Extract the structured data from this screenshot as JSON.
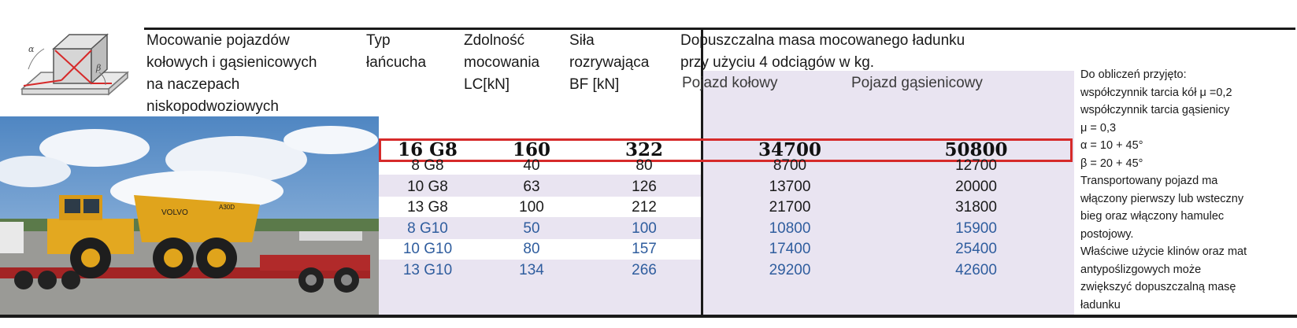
{
  "header": {
    "title_lines": [
      "Mocowanie pojazdów",
      "kołowych i gąsienicowych",
      "na naczepach",
      "niskopodwoziowych"
    ],
    "chain_type_lines": [
      "Typ",
      "łańcucha"
    ],
    "lc_lines": [
      "Zdolność",
      "mocowania",
      "LC[kN]"
    ],
    "bf_lines": [
      "Siła",
      "rozrywająca",
      "BF [kN]"
    ],
    "mass_lines": [
      "Dopuszczalna masa mocowanego ładunku",
      "przy użyciu 4 odciągów w kg."
    ],
    "sub_wheeled": "Pojazd kołowy",
    "sub_tracked": "Pojazd gąsienicowy"
  },
  "diagram": {
    "alpha": "α",
    "beta": "β"
  },
  "highlight": {
    "type": "16 G8",
    "lc": "160",
    "bf": "322",
    "wheeled": "34700",
    "tracked": "50800"
  },
  "rows": [
    {
      "type": "8 G8",
      "lc": "40",
      "bf": "80",
      "wheeled": "8700",
      "tracked": "12700",
      "color": "#1a1a1a"
    },
    {
      "type": "10 G8",
      "lc": "63",
      "bf": "126",
      "wheeled": "13700",
      "tracked": "20000",
      "color": "#1a1a1a"
    },
    {
      "type": "13 G8",
      "lc": "100",
      "bf": "212",
      "wheeled": "21700",
      "tracked": "31800",
      "color": "#1a1a1a"
    },
    {
      "type": "8 G10",
      "lc": "50",
      "bf": "100",
      "wheeled": "10800",
      "tracked": "15900",
      "color": "#2f5d9e"
    },
    {
      "type": "10 G10",
      "lc": "80",
      "bf": "157",
      "wheeled": "17400",
      "tracked": "25400",
      "color": "#2f5d9e"
    },
    {
      "type": "13 G10",
      "lc": "134",
      "bf": "266",
      "wheeled": "29200",
      "tracked": "42600",
      "color": "#2f5d9e"
    }
  ],
  "notes": [
    "Do obliczeń przyjęto:",
    "współczynnik tarcia kół μ =0,2",
    "współczynnik tarcia gąsienicy",
    " μ = 0,3",
    " α = 10 + 45°",
    "β = 20 + 45°",
    "Transportowany pojazd ma",
    "włączony pierwszy lub wsteczny",
    "bieg oraz włączony hamulec",
    "postojowy.",
    "Właściwe użycie klinów oraz mat",
    "antypoślizgowych może",
    "zwiększyć dopuszczalną masę",
    "ładunku"
  ],
  "photo": {
    "brand": "VOLVO",
    "model": "A30D"
  },
  "colors": {
    "highlight_border": "#d62a2a",
    "lavender": "#e9e4f1",
    "blue_text": "#2f5d9e"
  }
}
